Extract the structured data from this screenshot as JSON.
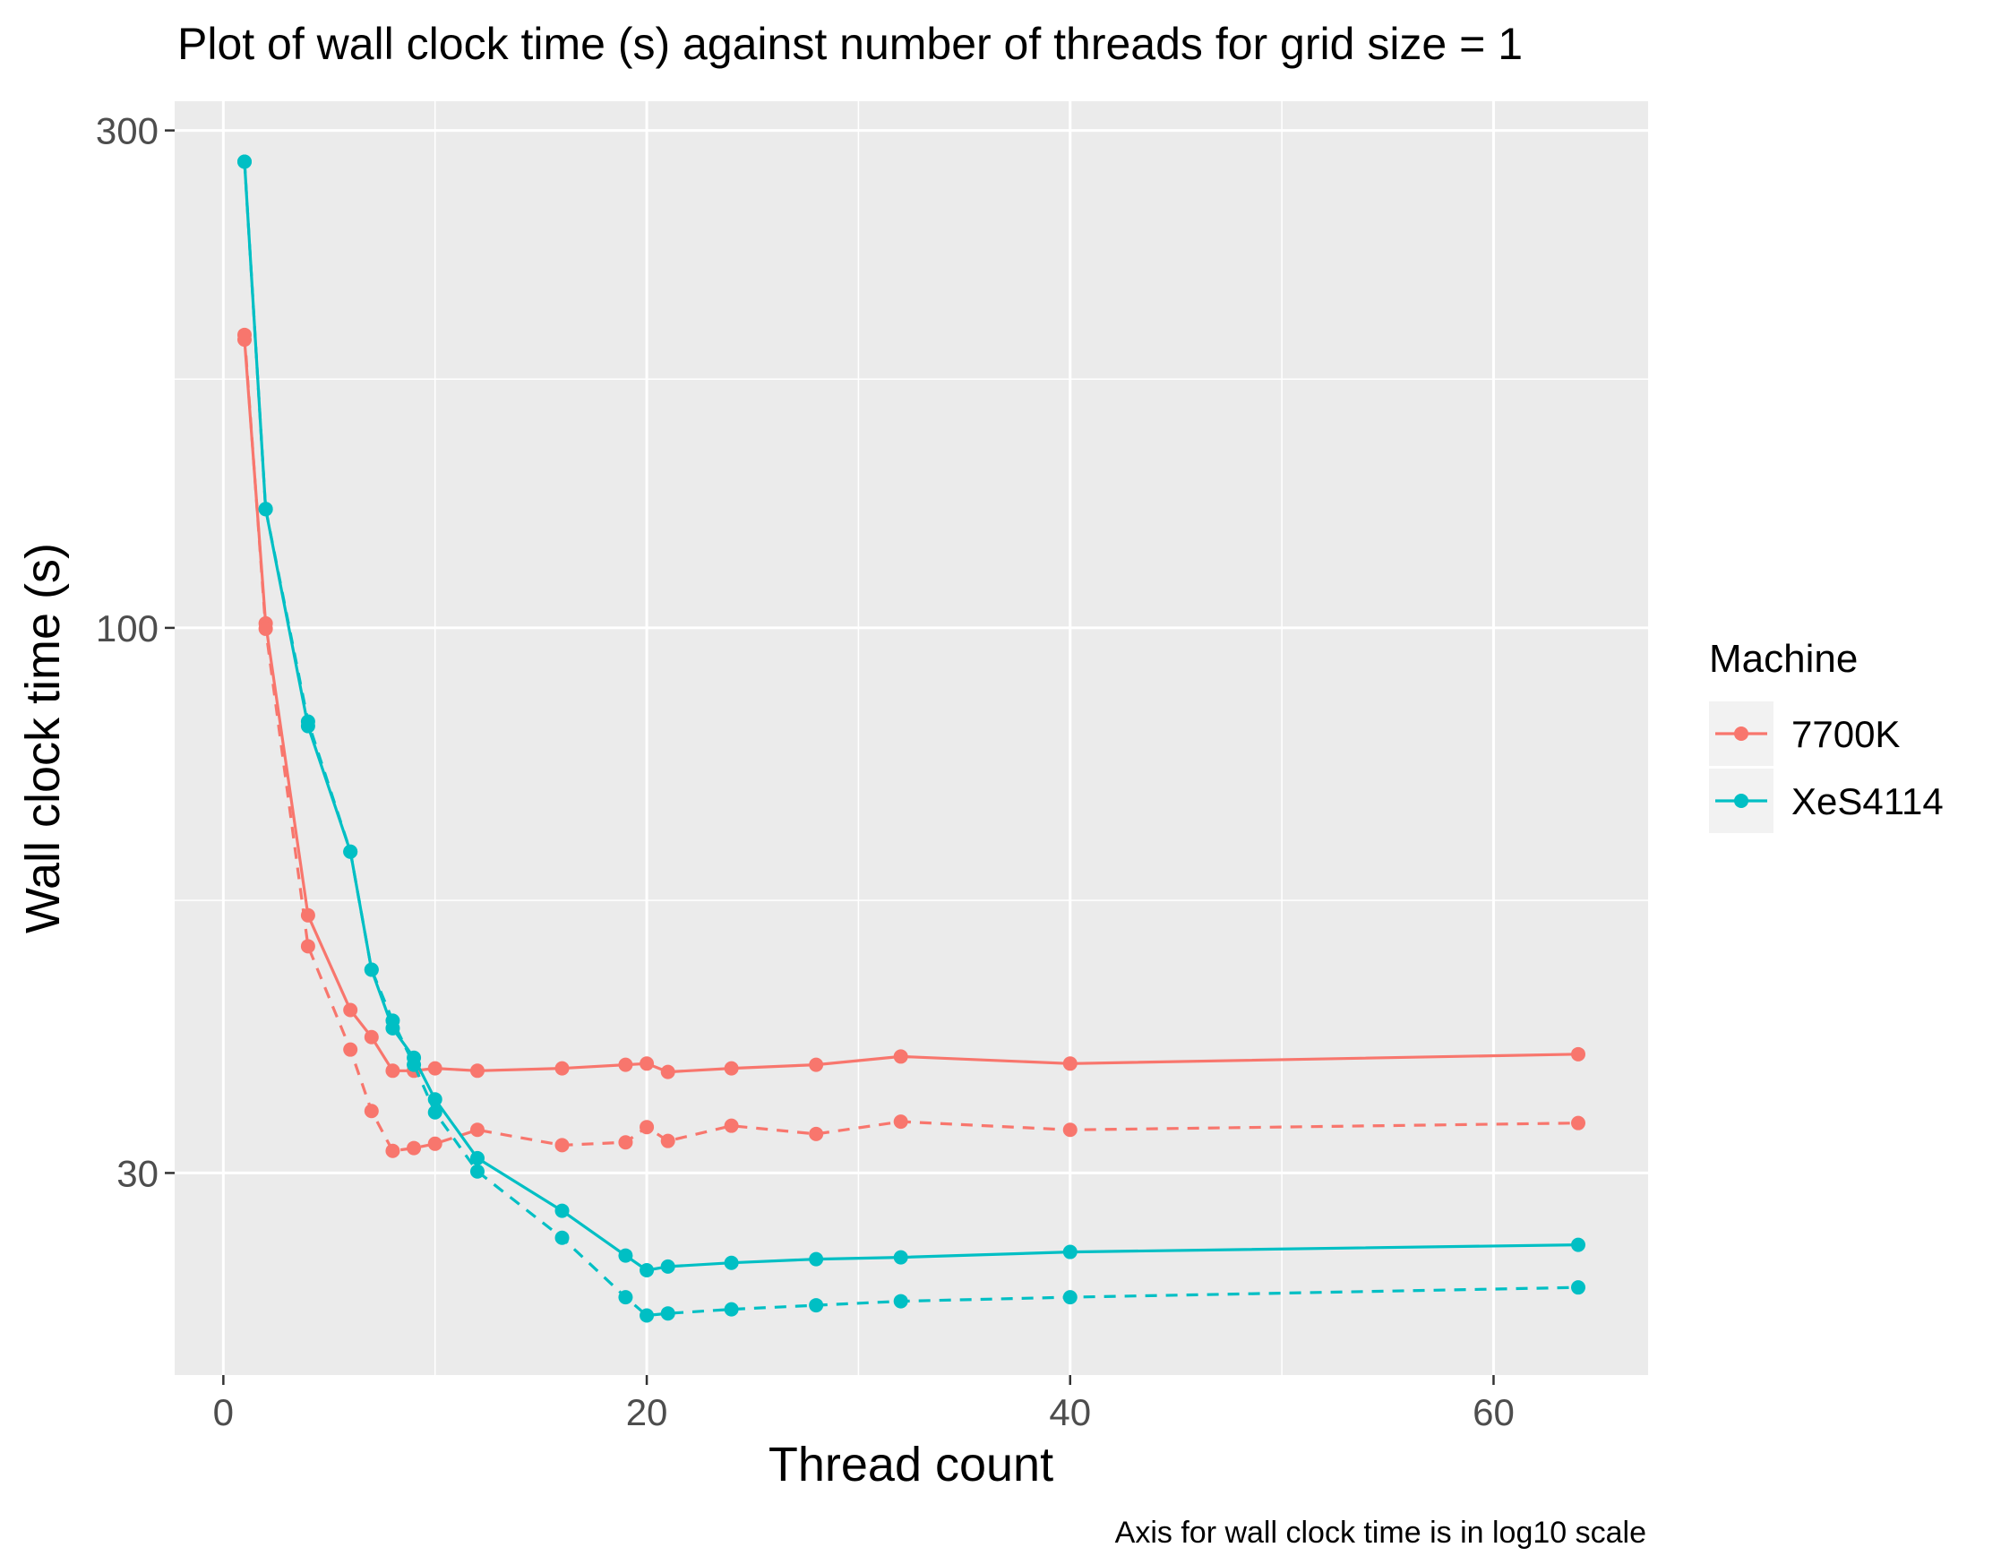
{
  "chart_data": {
    "type": "line",
    "title": "Plot of wall clock time (s) against number of threads for grid size =  1",
    "xlabel": "Thread count",
    "ylabel": "Wall clock time (s)",
    "caption": "Axis for wall clock time is in log10 scale",
    "x_ticks": [
      0,
      20,
      40,
      60
    ],
    "y_ticks": [
      30,
      100,
      300
    ],
    "xlim": [
      -2.3,
      67.3
    ],
    "ylim": [
      19.2,
      320
    ],
    "y_scale": "log10",
    "grid": true,
    "legend": {
      "title": "Machine",
      "position": "right",
      "entries": [
        "7700K",
        "XeS4114"
      ]
    },
    "colors": {
      "7700K": "#F8766D",
      "XeS4114": "#00BFC4"
    },
    "series": [
      {
        "name": "7700K",
        "line_style": "solid",
        "x": [
          1,
          2,
          4,
          6,
          7,
          8,
          9,
          10,
          12,
          16,
          19,
          20,
          21,
          24,
          28,
          32,
          40,
          64
        ],
        "y": [
          189,
          101,
          53,
          43,
          40.5,
          37.6,
          37.6,
          37.8,
          37.6,
          37.8,
          38.1,
          38.2,
          37.5,
          37.8,
          38.1,
          38.8,
          38.2,
          39
        ]
      },
      {
        "name": "7700K",
        "line_style": "dashed",
        "x": [
          1,
          2,
          4,
          6,
          7,
          8,
          9,
          10,
          12,
          16,
          19,
          20,
          21,
          24,
          28,
          32,
          40,
          64
        ],
        "y": [
          191,
          99.8,
          49.5,
          39.4,
          34.4,
          31.5,
          31.7,
          32,
          33,
          31.9,
          32.1,
          33.2,
          32.2,
          33.3,
          32.7,
          33.6,
          33,
          33.5
        ]
      },
      {
        "name": "XeS4114",
        "line_style": "solid",
        "x": [
          1,
          2,
          4,
          6,
          7,
          8,
          9,
          10,
          12,
          16,
          19,
          20,
          21,
          24,
          28,
          32,
          40,
          64
        ],
        "y": [
          280,
          130,
          80.5,
          61,
          47,
          41.3,
          38.7,
          35.3,
          31,
          27.6,
          25,
          24.2,
          24.4,
          24.6,
          24.8,
          24.9,
          25.2,
          25.6
        ]
      },
      {
        "name": "XeS4114",
        "line_style": "dashed",
        "x": [
          1,
          2,
          4,
          6,
          7,
          8,
          9,
          10,
          12,
          16,
          19,
          20,
          21,
          24,
          28,
          32,
          40,
          64
        ],
        "y": [
          280,
          130,
          81.3,
          61,
          47,
          42,
          38.1,
          34.3,
          30.1,
          26,
          22.8,
          21.9,
          22,
          22.2,
          22.4,
          22.6,
          22.8,
          23.3
        ]
      }
    ]
  }
}
